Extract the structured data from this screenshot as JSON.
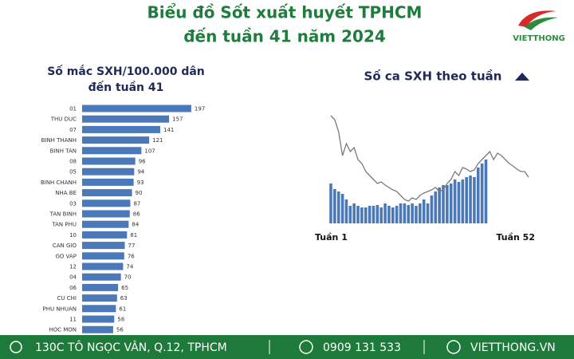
{
  "header": {
    "title": [
      "Biểu đồ Sốt xuất huyết TPHCM",
      "đến tuần 41 năm 2024"
    ],
    "logo": "VIETTHONG"
  },
  "chart_data": [
    {
      "type": "bar",
      "orientation": "horizontal",
      "title": [
        "Số mắc SXH/100.000 dân",
        "đến tuần 41"
      ],
      "categories": [
        "01",
        "THU DUC",
        "07",
        "BINH THANH",
        "BINH TAN",
        "08",
        "05",
        "BINH CHANH",
        "NHA BE",
        "03",
        "TAN BINH",
        "TAN PHU",
        "10",
        "CAN GIO",
        "GO VAP",
        "12",
        "04",
        "06",
        "CU CHI",
        "PHU NHUAN",
        "11",
        "HOC MON"
      ],
      "values": [
        197,
        157,
        141,
        121,
        107,
        96,
        94,
        93,
        90,
        87,
        86,
        84,
        81,
        77,
        76,
        74,
        70,
        65,
        63,
        61,
        58,
        56
      ],
      "color": "#4a78b8"
    },
    {
      "type": "combo",
      "title": "Số ca SXH theo tuần",
      "categories": [
        "Tuần 1",
        null,
        null,
        null,
        null,
        null,
        null,
        null,
        null,
        null,
        null,
        null,
        null,
        null,
        null,
        null,
        null,
        null,
        null,
        null,
        null,
        null,
        null,
        null,
        null,
        null,
        null,
        null,
        null,
        null,
        null,
        null,
        null,
        null,
        null,
        null,
        null,
        null,
        null,
        null,
        null,
        null,
        null,
        null,
        null,
        null,
        null,
        null,
        null,
        null,
        null,
        "Tuần 52"
      ],
      "series": [
        {
          "kind": "bar",
          "color": "#4a78b8",
          "values": [
            50,
            43,
            40,
            37,
            30,
            22,
            25,
            22,
            20,
            20,
            22,
            22,
            23,
            20,
            25,
            22,
            20,
            22,
            25,
            25,
            23,
            25,
            22,
            25,
            30,
            25,
            35,
            40,
            45,
            48,
            48,
            50,
            55,
            52,
            55,
            58,
            60,
            58,
            70,
            75,
            80,
            null,
            null,
            null,
            null,
            null,
            null,
            null,
            null,
            null,
            null,
            null
          ]
        },
        {
          "kind": "line",
          "color": "#7a7a7a",
          "values": [
            135,
            130,
            115,
            85,
            100,
            90,
            95,
            80,
            75,
            65,
            60,
            55,
            50,
            52,
            48,
            45,
            42,
            40,
            35,
            30,
            28,
            32,
            30,
            35,
            38,
            40,
            42,
            45,
            40,
            42,
            50,
            55,
            65,
            60,
            70,
            68,
            65,
            67,
            75,
            80,
            85,
            90,
            80,
            88,
            85,
            80,
            75,
            72,
            68,
            65,
            65,
            58
          ]
        }
      ]
    }
  ],
  "footer": {
    "address": "130C TÔ NGỌC VÂN, Q.12, TPHCM",
    "phone": "0909 131 533",
    "website": "VIETTHONG.VN"
  }
}
